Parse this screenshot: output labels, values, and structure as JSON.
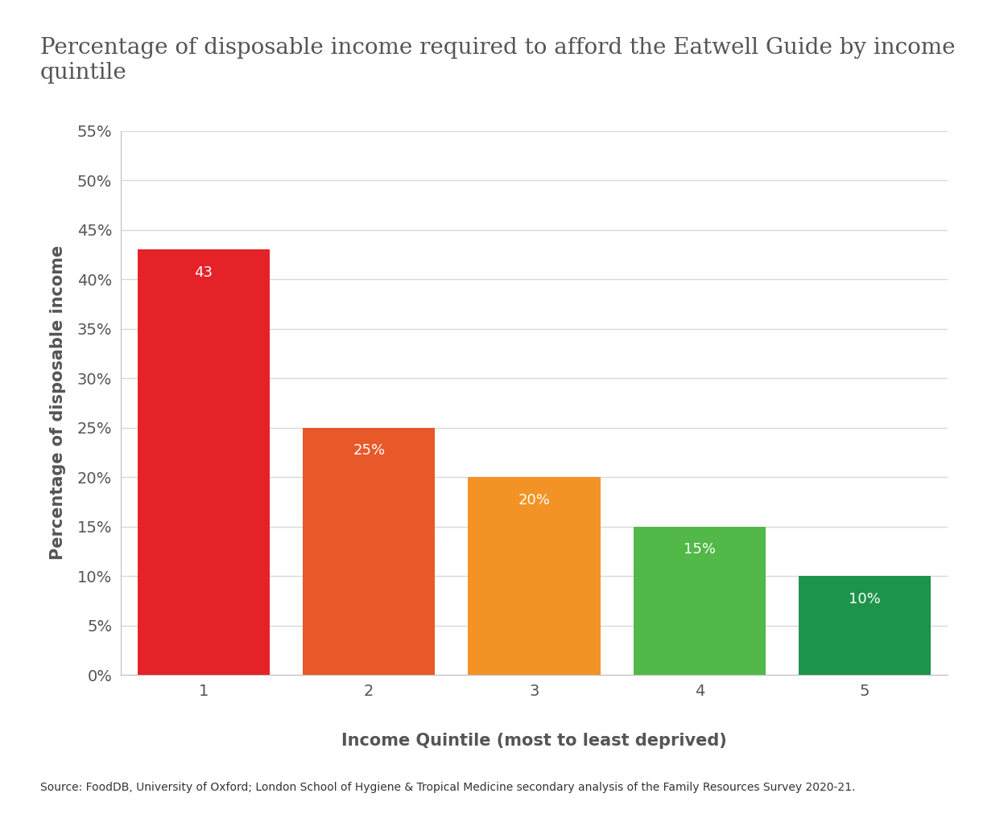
{
  "chart_data": {
    "type": "bar",
    "title": "Percentage of disposable income required to afford the Eatwell Guide by income quintile",
    "x_label": "Income Quintile (most to least deprived)",
    "y_label": "Percentage of disposable income",
    "categories": [
      "1",
      "2",
      "3",
      "4",
      "5"
    ],
    "values": [
      43,
      25,
      20,
      15,
      10
    ],
    "value_labels": [
      "43",
      "25%",
      "20%",
      "15%",
      "10%"
    ],
    "colors": [
      "#e42228",
      "#e8592a",
      "#f39325",
      "#52b848",
      "#1d944a"
    ],
    "data_labels": true,
    "ylim": [
      0,
      55
    ],
    "yticks": [
      {
        "value": 0,
        "label": "0%"
      },
      {
        "value": 5,
        "label": "5%"
      },
      {
        "value": 10,
        "label": "10%"
      },
      {
        "value": 15,
        "label": "15%"
      },
      {
        "value": 20,
        "label": "20%"
      },
      {
        "value": 25,
        "label": "25%"
      },
      {
        "value": 30,
        "label": "30%"
      },
      {
        "value": 35,
        "label": "35%"
      },
      {
        "value": 40,
        "label": "40%"
      },
      {
        "value": 45,
        "label": "45%"
      },
      {
        "value": 50,
        "label": "50%"
      },
      {
        "value": 55,
        "label": "55%"
      }
    ],
    "grid": true,
    "source": "Source: FoodDB, University of Oxford; London School of Hygiene & Tropical Medicine secondary analysis of the Family Resources Survey 2020-21."
  }
}
